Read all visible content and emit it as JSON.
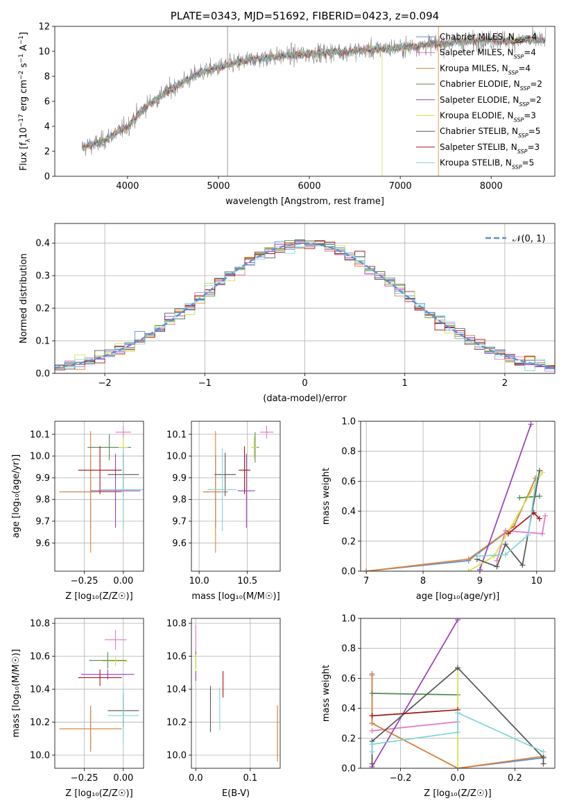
{
  "colors": {
    "chabrier_miles": "#5b8fd6",
    "salpeter_miles": "#e377c2",
    "kroupa_miles": "#e0822f",
    "chabrier_elodie": "#4f8a4f",
    "salpeter_elodie": "#9b3cb7",
    "kroupa_elodie": "#d6e04a",
    "chabrier_stelib": "#555555",
    "salpeter_stelib": "#a31515",
    "kroupa_stelib": "#7fd6d6",
    "spectrum": "#808080",
    "grid": "#b0b0b0",
    "normal_curve": "#5b8fd6"
  },
  "chart_data": [
    {
      "type": "line",
      "title": "PLATE=0343, MJD=51692, FIBERID=0423, z=0.094",
      "xlabel": "wavelength [Angstrom, rest frame]",
      "ylabel": "Flux [f",
      "ylabel_sub": "λ",
      "ylabel_rest": "10",
      "ylabel_exp": "−17",
      "ylabel_end": " erg cm",
      "ylabel_exp2": "−2",
      "ylabel_end2": " s",
      "ylabel_exp3": "−1",
      "ylabel_end3": " A",
      "ylabel_exp4": "−1",
      "ylabel_close": "]",
      "xlim": [
        3200,
        8700
      ],
      "ylim": [
        0,
        12
      ],
      "xticks": [
        "4000",
        "5000",
        "6000",
        "7000",
        "8000"
      ],
      "xtick_values": [
        4000,
        5000,
        6000,
        7000,
        8000
      ],
      "yticks": [
        "0",
        "2",
        "4",
        "6",
        "8",
        "10",
        "12"
      ],
      "ytick_values": [
        0,
        2,
        4,
        6,
        8,
        10,
        12
      ],
      "grid": false,
      "legend_position": "right",
      "legend": [
        {
          "prefix": "Chabrier MILES, N",
          "sub": "SSP",
          "suffix": "=4"
        },
        {
          "prefix": "Salpeter MILES, N",
          "sub": "SSP",
          "suffix": "=4"
        },
        {
          "prefix": "Kroupa MILES, N",
          "sub": "SSP",
          "suffix": "=4"
        },
        {
          "prefix": "Chabrier ELODIE, N",
          "sub": "SSP",
          "suffix": "=2"
        },
        {
          "prefix": "Salpeter ELODIE, N",
          "sub": "SSP",
          "suffix": "=2"
        },
        {
          "prefix": "Kroupa ELODIE, N",
          "sub": "SSP",
          "suffix": "=3"
        },
        {
          "prefix": "Chabrier STELIB, N",
          "sub": "SSP",
          "suffix": "=5"
        },
        {
          "prefix": "Salpeter STELIB, N",
          "sub": "SSP",
          "suffix": "=3"
        },
        {
          "prefix": "Kroupa STELIB, N",
          "sub": "SSP",
          "suffix": "=5"
        }
      ],
      "spectrum_anchors": [
        [
          3500,
          2.3
        ],
        [
          3700,
          2.7
        ],
        [
          3900,
          3.6
        ],
        [
          4000,
          4.0
        ],
        [
          4200,
          5.6
        ],
        [
          4500,
          7.1
        ],
        [
          4800,
          8.3
        ],
        [
          5100,
          8.9
        ],
        [
          5400,
          9.4
        ],
        [
          5800,
          9.7
        ],
        [
          6200,
          9.9
        ],
        [
          6600,
          10.1
        ],
        [
          7000,
          10.3
        ],
        [
          7400,
          10.6
        ],
        [
          7700,
          10.8
        ],
        [
          8000,
          10.9
        ],
        [
          8600,
          10.9
        ]
      ]
    },
    {
      "type": "bar",
      "xlabel": "(data-model)/error",
      "ylabel": "Normed distribution",
      "xlim": [
        -2.5,
        2.5
      ],
      "ylim": [
        0,
        0.46
      ],
      "xticks": [
        "−2",
        "−1",
        "0",
        "1",
        "2"
      ],
      "xtick_values": [
        -2,
        -1,
        0,
        1,
        2
      ],
      "yticks": [
        "0.0",
        "0.1",
        "0.2",
        "0.3",
        "0.4"
      ],
      "ytick_values": [
        0,
        0.1,
        0.2,
        0.3,
        0.4
      ],
      "grid": true,
      "bin_width": 0.1,
      "legend_label": "𝒩(0, 1)",
      "legend_position": "top-right"
    },
    {
      "type": "scatter",
      "xlabel": "Z [log₁₀(Z/Z☉)]",
      "ylabel": "age  [log₁₀(age/yr)]",
      "xlim": [
        -0.44,
        0.13
      ],
      "ylim": [
        9.47,
        10.16
      ],
      "xticks": [
        "−0.25",
        "0.00"
      ],
      "xtick_values": [
        -0.25,
        0.0
      ],
      "yticks": [
        "9.6",
        "9.7",
        "9.8",
        "9.9",
        "10.0",
        "10.1"
      ],
      "ytick_values": [
        9.6,
        9.7,
        9.8,
        9.9,
        10.0,
        10.1
      ],
      "grid": true,
      "points": [
        {
          "s": "chabrier_miles",
          "x": -0.21,
          "y": 9.835,
          "dx": 0.2,
          "dy": 0.17
        },
        {
          "s": "salpeter_miles",
          "x": 0.0,
          "y": 10.11,
          "dx": 0.05,
          "dy": 0.03
        },
        {
          "s": "kroupa_miles",
          "x": -0.21,
          "y": 9.835,
          "dx": 0.2,
          "dy": 0.28
        },
        {
          "s": "chabrier_elodie",
          "x": -0.09,
          "y": 10.04,
          "dx": 0.14,
          "dy": 0.06
        },
        {
          "s": "salpeter_elodie",
          "x": -0.05,
          "y": 9.84,
          "dx": 0.16,
          "dy": 0.17
        },
        {
          "s": "kroupa_elodie",
          "x": 0.0,
          "y": 10.04,
          "dx": 0.03,
          "dy": 0.05
        },
        {
          "s": "chabrier_stelib",
          "x": 0.0,
          "y": 9.915,
          "dx": 0.1,
          "dy": 0.1
        },
        {
          "s": "salpeter_stelib",
          "x": -0.15,
          "y": 9.935,
          "dx": 0.14,
          "dy": 0.11
        },
        {
          "s": "kroupa_stelib",
          "x": 0.0,
          "y": 9.845,
          "dx": 0.16,
          "dy": 0.19
        }
      ]
    },
    {
      "type": "scatter",
      "xlabel": "mass [log₁₀(M/M☉)]",
      "xlim": [
        9.92,
        10.84
      ],
      "ylim": [
        9.47,
        10.16
      ],
      "xticks": [
        "10.0",
        "10.5"
      ],
      "xtick_values": [
        10.0,
        10.5
      ],
      "yticks": [
        "9.6",
        "9.7",
        "9.8",
        "9.9",
        "10.0",
        "10.1"
      ],
      "ytick_values": [
        9.6,
        9.7,
        9.8,
        9.9,
        10.0,
        10.1
      ],
      "grid": true,
      "points": [
        {
          "s": "chabrier_miles",
          "x": 10.17,
          "y": 9.835,
          "dx": 0.13,
          "dy": 0.17
        },
        {
          "s": "salpeter_miles",
          "x": 10.7,
          "y": 10.11,
          "dx": 0.07,
          "dy": 0.03
        },
        {
          "s": "kroupa_miles",
          "x": 10.17,
          "y": 9.835,
          "dx": 0.13,
          "dy": 0.28
        },
        {
          "s": "chabrier_elodie",
          "x": 10.58,
          "y": 10.04,
          "dx": 0.04,
          "dy": 0.07
        },
        {
          "s": "salpeter_elodie",
          "x": 10.49,
          "y": 9.84,
          "dx": 0.09,
          "dy": 0.17
        },
        {
          "s": "kroupa_elodie",
          "x": 10.57,
          "y": 10.04,
          "dx": 0.03,
          "dy": 0.05
        },
        {
          "s": "chabrier_stelib",
          "x": 10.27,
          "y": 9.915,
          "dx": 0.11,
          "dy": 0.1
        },
        {
          "s": "salpeter_stelib",
          "x": 10.47,
          "y": 9.935,
          "dx": 0.06,
          "dy": 0.11
        },
        {
          "s": "kroupa_stelib",
          "x": 10.24,
          "y": 9.845,
          "dx": 0.15,
          "dy": 0.19
        }
      ]
    },
    {
      "type": "line",
      "xlabel": "age  [log₁₀(age/yr)]",
      "ylabel": "mass weight",
      "xlim": [
        6.9,
        10.32
      ],
      "ylim": [
        0,
        1
      ],
      "xticks": [
        "7",
        "8",
        "9",
        "10"
      ],
      "xtick_values": [
        7,
        8,
        9,
        10
      ],
      "yticks": [
        "0.0",
        "0.2",
        "0.4",
        "0.6",
        "0.8",
        "1.0"
      ],
      "ytick_values": [
        0,
        0.2,
        0.4,
        0.6,
        0.8,
        1.0
      ],
      "grid": true,
      "series": [
        {
          "s": "chabrier_miles",
          "points": [
            [
              7,
              0
            ],
            [
              8.8,
              0.07
            ],
            [
              9.6,
              0.3
            ],
            [
              9.98,
              0.62
            ]
          ]
        },
        {
          "s": "salpeter_miles",
          "points": [
            [
              9.3,
              0.07
            ],
            [
              9.45,
              0.27
            ],
            [
              10.1,
              0.25
            ],
            [
              10.15,
              0.37
            ]
          ]
        },
        {
          "s": "kroupa_miles",
          "points": [
            [
              7,
              0
            ],
            [
              8.8,
              0.08
            ],
            [
              9.6,
              0.3
            ],
            [
              9.98,
              0.62
            ]
          ]
        },
        {
          "s": "chabrier_elodie",
          "points": [
            [
              9.7,
              0.49
            ],
            [
              10.05,
              0.5
            ]
          ]
        },
        {
          "s": "salpeter_elodie",
          "points": [
            [
              9.0,
              0.01
            ],
            [
              9.9,
              0.98
            ]
          ]
        },
        {
          "s": "kroupa_elodie",
          "points": [
            [
              8.8,
              0.0
            ],
            [
              9.25,
              0.1
            ],
            [
              10.1,
              0.66
            ]
          ]
        },
        {
          "s": "chabrier_stelib",
          "points": [
            [
              8.95,
              0.08
            ],
            [
              9.3,
              0.03
            ],
            [
              9.45,
              0.18
            ],
            [
              9.75,
              0.04
            ],
            [
              10.05,
              0.67
            ]
          ]
        },
        {
          "s": "salpeter_stelib",
          "points": [
            [
              9.5,
              0.25
            ],
            [
              9.95,
              0.39
            ],
            [
              10.05,
              0.35
            ]
          ]
        },
        {
          "s": "kroupa_stelib",
          "points": [
            [
              8.95,
              0.1
            ],
            [
              9.45,
              0.11
            ],
            [
              9.85,
              0.24
            ],
            [
              10.0,
              0.63
            ]
          ]
        }
      ]
    },
    {
      "type": "scatter",
      "xlabel": "Z [log₁₀(Z/Z☉)]",
      "ylabel": "mass [log₁₀(M/M☉)]",
      "xlim": [
        -0.44,
        0.13
      ],
      "ylim": [
        9.92,
        10.83
      ],
      "xticks": [
        "−0.25",
        "0.00"
      ],
      "xtick_values": [
        -0.25,
        0.0
      ],
      "yticks": [
        "10.0",
        "10.2",
        "10.4",
        "10.6",
        "10.8"
      ],
      "ytick_values": [
        10.0,
        10.2,
        10.4,
        10.6,
        10.8
      ],
      "grid": true,
      "points": [
        {
          "s": "chabrier_miles",
          "x": -0.21,
          "y": 10.16,
          "dx": 0.2,
          "dy": 0.14
        },
        {
          "s": "salpeter_miles",
          "x": -0.05,
          "y": 10.7,
          "dx": 0.07,
          "dy": 0.06
        },
        {
          "s": "kroupa_miles",
          "x": -0.21,
          "y": 10.16,
          "dx": 0.2,
          "dy": 0.13
        },
        {
          "s": "chabrier_elodie",
          "x": -0.1,
          "y": 10.575,
          "dx": 0.12,
          "dy": 0.05
        },
        {
          "s": "salpeter_elodie",
          "x": -0.1,
          "y": 10.49,
          "dx": 0.17,
          "dy": 0.03
        },
        {
          "s": "kroupa_elodie",
          "x": -0.05,
          "y": 10.57,
          "dx": 0.08,
          "dy": 0.03
        },
        {
          "s": "chabrier_stelib",
          "x": 0.0,
          "y": 10.27,
          "dx": 0.1,
          "dy": 0.1
        },
        {
          "s": "salpeter_stelib",
          "x": -0.15,
          "y": 10.47,
          "dx": 0.14,
          "dy": 0.05
        },
        {
          "s": "kroupa_stelib",
          "x": 0.0,
          "y": 10.24,
          "dx": 0.1,
          "dy": 0.18
        }
      ]
    },
    {
      "type": "scatter",
      "xlabel": "E(B-V)",
      "xlim": [
        -0.008,
        0.155
      ],
      "ylim": [
        9.92,
        10.83
      ],
      "xticks": [
        "0.0",
        "0.1"
      ],
      "xtick_values": [
        0.0,
        0.1
      ],
      "yticks": [
        "10.0",
        "10.2",
        "10.4",
        "10.6",
        "10.8"
      ],
      "ytick_values": [
        10.0,
        10.2,
        10.4,
        10.6,
        10.8
      ],
      "grid": true,
      "points": [
        {
          "s": "chabrier_miles",
          "x": 0.15,
          "y": 10.13,
          "dx": 0,
          "dy": 0.17
        },
        {
          "s": "salpeter_miles",
          "x": 0.0,
          "y": 10.7,
          "dx": 0,
          "dy": 0.09
        },
        {
          "s": "kroupa_miles",
          "x": 0.15,
          "y": 10.13,
          "dx": 0,
          "dy": 0.17
        },
        {
          "s": "chabrier_elodie",
          "x": 0.0,
          "y": 10.58,
          "dx": 0,
          "dy": 0.05
        },
        {
          "s": "salpeter_elodie",
          "x": 0.0,
          "y": 10.48,
          "dx": 0,
          "dy": 0.03
        },
        {
          "s": "kroupa_elodie",
          "x": 0.0,
          "y": 10.56,
          "dx": 0,
          "dy": 0.05
        },
        {
          "s": "chabrier_stelib",
          "x": 0.027,
          "y": 10.28,
          "dx": 0,
          "dy": 0.14
        },
        {
          "s": "salpeter_stelib",
          "x": 0.05,
          "y": 10.43,
          "dx": 0,
          "dy": 0.08
        },
        {
          "s": "kroupa_stelib",
          "x": 0.044,
          "y": 10.28,
          "dx": 0,
          "dy": 0.13
        }
      ]
    },
    {
      "type": "line",
      "xlabel": "Z [log₁₀(Z/Z☉)]",
      "ylabel": "mass weight",
      "xlim": [
        -0.34,
        0.34
      ],
      "ylim": [
        0,
        1
      ],
      "xticks": [
        "−0.2",
        "0.0",
        "0.2"
      ],
      "xtick_values": [
        -0.2,
        0.0,
        0.2
      ],
      "yticks": [
        "0.0",
        "0.2",
        "0.4",
        "0.6",
        "0.8",
        "1.0"
      ],
      "ytick_values": [
        0,
        0.2,
        0.4,
        0.6,
        0.8,
        1.0
      ],
      "grid": true,
      "series": [
        {
          "s": "chabrier_miles",
          "points": [
            [
              -0.3,
              0.63
            ],
            [
              -0.3,
              0.3
            ],
            [
              0.0,
              0.0
            ],
            [
              0.3,
              0.07
            ]
          ]
        },
        {
          "s": "salpeter_miles",
          "points": [
            [
              -0.3,
              0.25
            ],
            [
              0.0,
              0.31
            ]
          ]
        },
        {
          "s": "kroupa_miles",
          "points": [
            [
              -0.3,
              0.62
            ],
            [
              -0.3,
              0.3
            ],
            [
              0.0,
              0.0
            ],
            [
              0.3,
              0.08
            ]
          ]
        },
        {
          "s": "chabrier_elodie",
          "points": [
            [
              -0.3,
              0.5
            ],
            [
              0.0,
              0.49
            ]
          ]
        },
        {
          "s": "salpeter_elodie",
          "points": [
            [
              -0.3,
              0.01
            ],
            [
              0.0,
              0.99
            ]
          ]
        },
        {
          "s": "kroupa_elodie",
          "points": [
            [
              0.0,
              0.0
            ],
            [
              0.0,
              0.66
            ]
          ]
        },
        {
          "s": "chabrier_stelib",
          "points": [
            [
              -0.3,
              0.03
            ],
            [
              -0.3,
              0.18
            ],
            [
              0.0,
              0.67
            ],
            [
              0.3,
              0.07
            ],
            [
              0.3,
              0.03
            ]
          ]
        },
        {
          "s": "salpeter_stelib",
          "points": [
            [
              -0.3,
              0.35
            ],
            [
              0.0,
              0.39
            ]
          ]
        },
        {
          "s": "kroupa_stelib",
          "points": [
            [
              -0.3,
              0.11
            ],
            [
              -0.3,
              0.16
            ],
            [
              0.0,
              0.24
            ],
            [
              0.0,
              0.37
            ],
            [
              0.3,
              0.11
            ]
          ]
        }
      ]
    }
  ]
}
